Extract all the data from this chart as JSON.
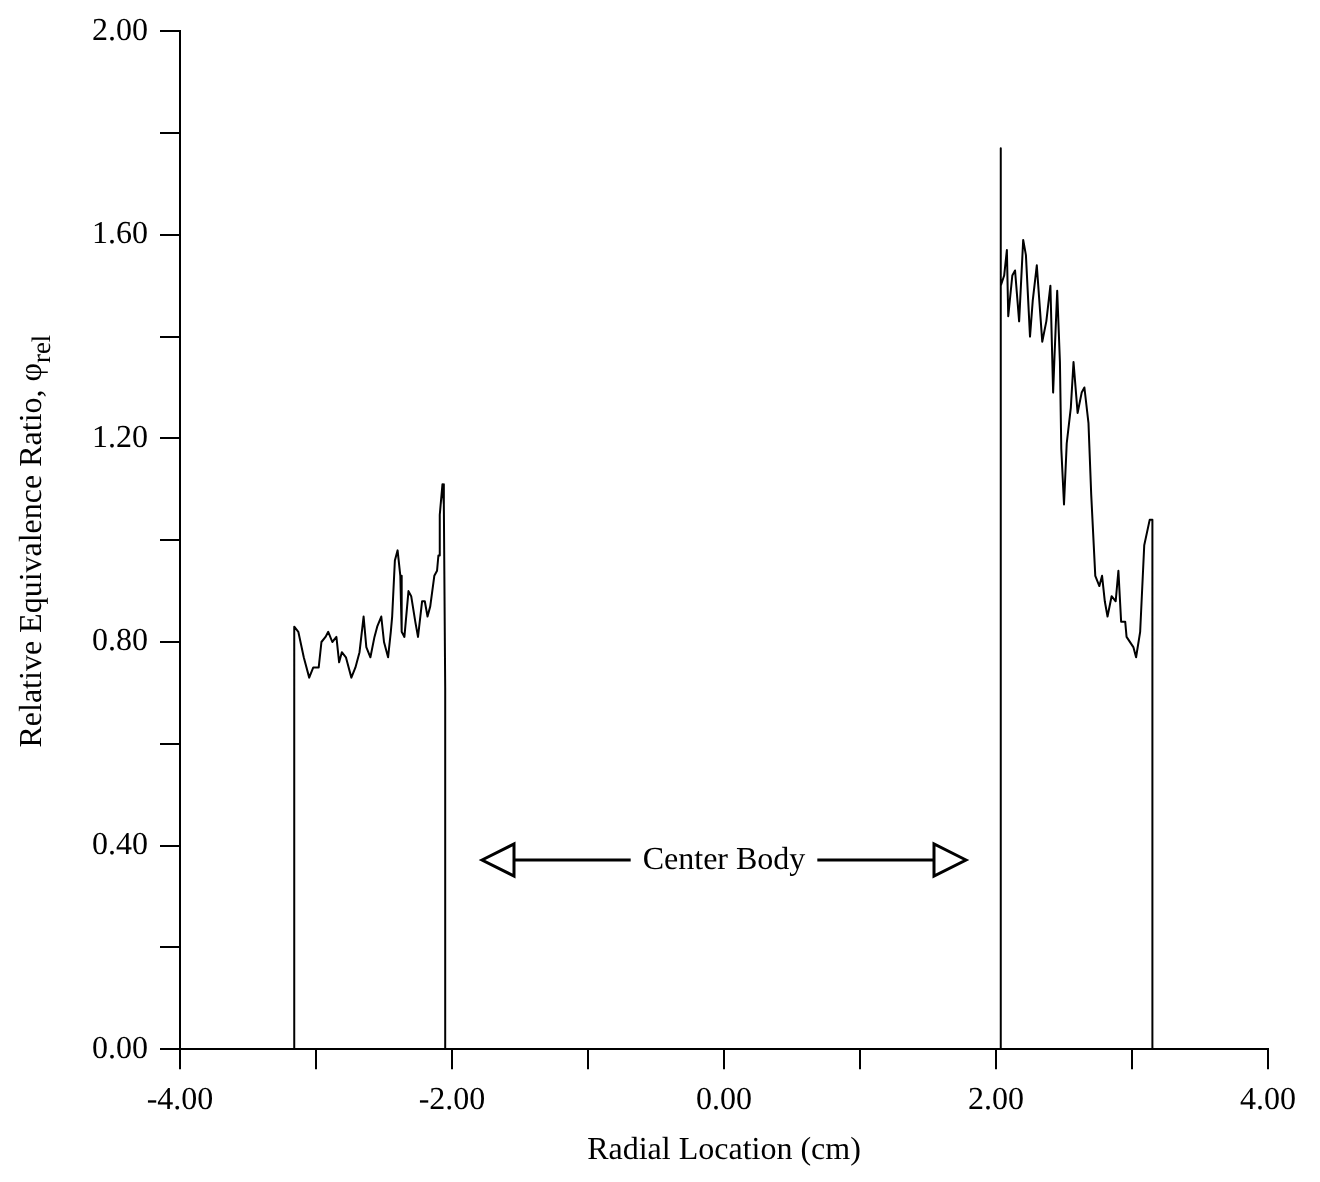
{
  "chart_data": {
    "type": "line",
    "xlabel": "Radial Location (cm)",
    "ylabel": "Relative Equivalence Ratio, φ$_{rel}$",
    "x": [
      -3.16,
      -3.16,
      -3.13,
      -3.09,
      -3.05,
      -3.02,
      -2.98,
      -2.96,
      -2.93,
      -2.91,
      -2.88,
      -2.85,
      -2.83,
      -2.81,
      -2.78,
      -2.74,
      -2.71,
      -2.68,
      -2.65,
      -2.63,
      -2.6,
      -2.57,
      -2.55,
      -2.52,
      -2.5,
      -2.47,
      -2.45,
      -2.44,
      -2.42,
      -2.4,
      -2.38,
      -2.37,
      -2.35,
      -2.32,
      -2.3,
      -2.27,
      -2.25,
      -2.22,
      -2.2,
      -2.18,
      -2.16,
      -2.13,
      -2.11,
      -2.1,
      -2.09,
      -2.07,
      -2.06,
      -2.05,
      -2.05,
      2.03,
      2.03,
      2.04,
      2.06,
      2.08,
      2.09,
      2.12,
      2.14,
      2.17,
      2.2,
      2.22,
      2.25,
      2.27,
      2.3,
      2.34,
      2.37,
      2.4,
      2.42,
      2.43,
      2.45,
      2.47,
      2.48,
      2.5,
      2.52,
      2.55,
      2.57,
      2.6,
      2.63,
      2.65,
      2.68,
      2.7,
      2.73,
      2.76,
      2.78,
      2.8,
      2.82,
      2.85,
      2.88,
      2.9,
      2.92,
      2.95,
      2.96,
      3.01,
      3.03,
      3.06,
      3.09,
      3.13,
      3.15,
      3.15
    ],
    "values": [
      0,
      0.83,
      0.82,
      0.77,
      0.73,
      0.75,
      0.75,
      0.8,
      0.81,
      0.82,
      0.8,
      0.81,
      0.76,
      0.78,
      0.77,
      0.73,
      0.75,
      0.78,
      0.85,
      0.79,
      0.77,
      0.81,
      0.83,
      0.85,
      0.8,
      0.77,
      0.82,
      0.85,
      0.96,
      0.98,
      0.93,
      0.82,
      0.81,
      0.9,
      0.89,
      0.84,
      0.81,
      0.88,
      0.88,
      0.85,
      0.87,
      0.93,
      0.94,
      0.97,
      1.05,
      1.11,
      1.07,
      0.71,
      0,
      0,
      1.77,
      1.5,
      1.52,
      1.57,
      1.44,
      1.52,
      1.53,
      1.43,
      1.59,
      1.56,
      1.4,
      1.47,
      1.54,
      1.39,
      1.43,
      1.5,
      1.29,
      1.36,
      1.49,
      1.35,
      1.18,
      1.07,
      1.19,
      1.26,
      1.35,
      1.25,
      1.29,
      1.3,
      1.23,
      1.09,
      0.93,
      0.91,
      0.93,
      0.88,
      0.85,
      0.89,
      0.88,
      0.94,
      0.84,
      0.84,
      0.81,
      0.79,
      0.77,
      0.82,
      0.99,
      1.04,
      1.04,
      0
    ],
    "color": "#000000",
    "xlim": [
      -4,
      4
    ],
    "xticks": [
      {
        "value": -4,
        "label": "-4.00"
      },
      {
        "value": -3,
        "label": null
      },
      {
        "value": -2,
        "label": "-2.00"
      },
      {
        "value": -1,
        "label": null
      },
      {
        "value": 0,
        "label": "0.00"
      },
      {
        "value": 1,
        "label": null
      },
      {
        "value": 2,
        "label": "2.00"
      },
      {
        "value": 3,
        "label": null
      },
      {
        "value": 4,
        "label": "4.00"
      }
    ],
    "ylim": [
      0,
      2
    ],
    "yticks": [
      {
        "value": 0,
        "label": "0.00"
      },
      {
        "value": 0.2,
        "label": null
      },
      {
        "value": 0.4,
        "label": "0.40"
      },
      {
        "value": 0.6,
        "label": null
      },
      {
        "value": 0.8,
        "label": "0.80"
      },
      {
        "value": 1.0,
        "label": null
      },
      {
        "value": 1.2,
        "label": "1.20"
      },
      {
        "value": 1.4,
        "label": null
      },
      {
        "value": 1.6,
        "label": "1.60"
      },
      {
        "value": 1.8,
        "label": null
      },
      {
        "value": 2.0,
        "label": "2.00"
      }
    ],
    "annotations": [
      "Center Body"
    ],
    "grid": false,
    "legend": false,
    "marker": "none",
    "line_style": "solid"
  }
}
